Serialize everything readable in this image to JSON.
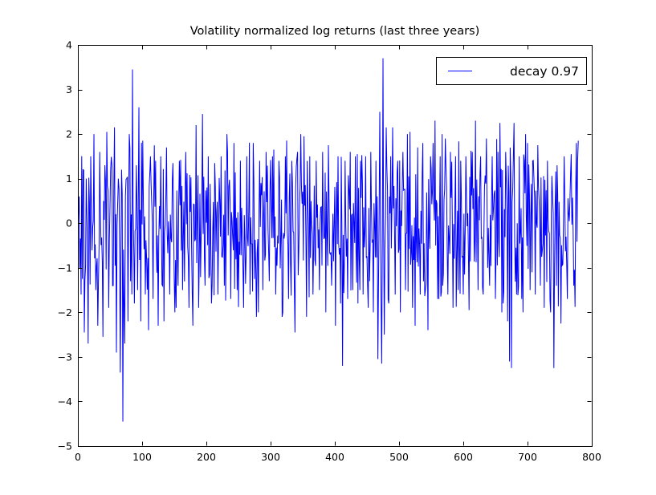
{
  "figure": {
    "background": "#ffffff",
    "axes_color": "#000000",
    "tick_style": "inward, all four spines"
  },
  "chart_data": {
    "type": "line",
    "title": "Volatility normalized log returns (last three years)",
    "xlabel": "",
    "ylabel": "",
    "xlim": [
      0,
      800
    ],
    "ylim": [
      -5,
      4
    ],
    "xticks": [
      0,
      100,
      200,
      300,
      400,
      500,
      600,
      700,
      800
    ],
    "xticklabels": [
      "0",
      "100",
      "200",
      "300",
      "400",
      "500",
      "600",
      "700",
      "800"
    ],
    "yticks": [
      -5,
      -4,
      -3,
      -2,
      -1,
      0,
      1,
      2,
      3,
      4
    ],
    "yticklabels": [
      "−5",
      "−4",
      "−3",
      "−2",
      "−1",
      "0",
      "1",
      "2",
      "3",
      "4"
    ],
    "grid": false,
    "legend": {
      "position": "upper right",
      "entries": [
        {
          "label": "decay 0.97",
          "color": "#0000ff"
        }
      ]
    },
    "series": [
      {
        "name": "decay 0.97",
        "color": "#0000ff",
        "line_width": 1,
        "n_points": 780,
        "summary": "volatility-normalized daily log returns; dense zero-mean noise (sigma ~1), min ~ -4.45 near x=70, max ~ +3.7 near x=475",
        "synthesis": {
          "seed": 20,
          "sigma": 0.8,
          "clamp": 2.0
        },
        "anchors": [
          [
            0,
            -0.3
          ],
          [
            2,
            0.6
          ],
          [
            5,
            -1.6
          ],
          [
            8,
            1.2
          ],
          [
            10,
            -2.45
          ],
          [
            13,
            1.0
          ],
          [
            16,
            -2.7
          ],
          [
            20,
            1.5
          ],
          [
            25,
            2.0
          ],
          [
            28,
            -1.5
          ],
          [
            31,
            -2.3
          ],
          [
            34,
            1.6
          ],
          [
            39,
            -2.55
          ],
          [
            42,
            1.3
          ],
          [
            45,
            2.05
          ],
          [
            48,
            -1.9
          ],
          [
            51,
            1.2
          ],
          [
            54,
            -1.4
          ],
          [
            57,
            2.15
          ],
          [
            60,
            -2.9
          ],
          [
            63,
            1.0
          ],
          [
            66,
            -3.35
          ],
          [
            68,
            1.2
          ],
          [
            70,
            -4.45
          ],
          [
            73,
            -2.7
          ],
          [
            76,
            1.0
          ],
          [
            78,
            -2.2
          ],
          [
            80,
            2.0
          ],
          [
            82,
            -1.3
          ],
          [
            85,
            3.45
          ],
          [
            88,
            -1.8
          ],
          [
            91,
            1.3
          ],
          [
            93,
            -1.5
          ],
          [
            95,
            2.6
          ],
          [
            98,
            -2.2
          ],
          [
            101,
            1.85
          ],
          [
            105,
            -1.6
          ],
          [
            110,
            -2.4
          ],
          [
            113,
            1.5
          ],
          [
            117,
            -1.7
          ],
          [
            121,
            1.4
          ],
          [
            125,
            -2.3
          ],
          [
            129,
            1.5
          ],
          [
            134,
            -2.2
          ],
          [
            138,
            1.7
          ],
          [
            143,
            -1.6
          ],
          [
            148,
            1.35
          ],
          [
            153,
            -1.9
          ],
          [
            158,
            1.4
          ],
          [
            163,
            -1.5
          ],
          [
            168,
            1.6
          ],
          [
            173,
            -1.9
          ],
          [
            179,
            -2.3
          ],
          [
            184,
            2.2
          ],
          [
            188,
            -1.9
          ],
          [
            194,
            2.45
          ],
          [
            198,
            -1.4
          ],
          [
            203,
            1.5
          ],
          [
            208,
            -1.8
          ],
          [
            213,
            1.35
          ],
          [
            218,
            -1.6
          ],
          [
            223,
            1.5
          ],
          [
            228,
            -1.4
          ],
          [
            233,
            1.6
          ],
          [
            238,
            -1.7
          ],
          [
            243,
            1.8
          ],
          [
            248,
            -1.5
          ],
          [
            253,
            1.4
          ],
          [
            258,
            -1.9
          ],
          [
            263,
            1.5
          ],
          [
            268,
            -1.6
          ],
          [
            273,
            1.8
          ],
          [
            278,
            -2.1
          ],
          [
            283,
            1.4
          ],
          [
            288,
            -1.5
          ],
          [
            293,
            1.6
          ],
          [
            298,
            -1.3
          ],
          [
            303,
            1.5
          ],
          [
            308,
            -1.6
          ],
          [
            313,
            1.4
          ],
          [
            318,
            -2.1
          ],
          [
            323,
            1.5
          ],
          [
            328,
            -1.7
          ],
          [
            333,
            1.4
          ],
          [
            338,
            -2.45
          ],
          [
            342,
            1.6
          ],
          [
            347,
            2.0
          ],
          [
            352,
            1.95
          ],
          [
            356,
            -2.1
          ],
          [
            361,
            1.5
          ],
          [
            366,
            -1.6
          ],
          [
            371,
            1.4
          ],
          [
            376,
            -1.5
          ],
          [
            381,
            1.6
          ],
          [
            386,
            -2.0
          ],
          [
            390,
            1.75
          ],
          [
            395,
            -1.4
          ],
          [
            401,
            -2.3
          ],
          [
            405,
            1.5
          ],
          [
            409,
            -1.8
          ],
          [
            412,
            -3.2
          ],
          [
            416,
            1.4
          ],
          [
            420,
            -1.7
          ],
          [
            424,
            1.6
          ],
          [
            428,
            -1.5
          ],
          [
            432,
            1.5
          ],
          [
            436,
            -1.8
          ],
          [
            440,
            1.4
          ],
          [
            444,
            -1.6
          ],
          [
            448,
            1.5
          ],
          [
            452,
            -1.9
          ],
          [
            456,
            1.6
          ],
          [
            460,
            -2.0
          ],
          [
            464,
            1.4
          ],
          [
            467,
            -3.05
          ],
          [
            470,
            2.5
          ],
          [
            473,
            -3.15
          ],
          [
            475,
            3.7
          ],
          [
            477,
            -2.5
          ],
          [
            480,
            2.15
          ],
          [
            484,
            -1.8
          ],
          [
            487,
            1.5
          ],
          [
            490,
            2.15
          ],
          [
            494,
            -1.6
          ],
          [
            498,
            1.4
          ],
          [
            502,
            -2.0
          ],
          [
            506,
            1.6
          ],
          [
            510,
            -1.5
          ],
          [
            513,
            2.0
          ],
          [
            517,
            2.05
          ],
          [
            521,
            -1.9
          ],
          [
            525,
            -2.3
          ],
          [
            529,
            1.7
          ],
          [
            533,
            -1.6
          ],
          [
            537,
            1.8
          ],
          [
            541,
            -1.5
          ],
          [
            545,
            -2.4
          ],
          [
            549,
            1.5
          ],
          [
            553,
            1.8
          ],
          [
            556,
            2.3
          ],
          [
            560,
            -1.7
          ],
          [
            564,
            1.5
          ],
          [
            568,
            -1.4
          ],
          [
            572,
            1.9
          ],
          [
            576,
            -1.6
          ],
          [
            580,
            1.6
          ],
          [
            584,
            -1.9
          ],
          [
            588,
            1.5
          ],
          [
            592,
            -1.5
          ],
          [
            596,
            1.4
          ],
          [
            600,
            -1.6
          ],
          [
            604,
            1.5
          ],
          [
            609,
            -1.95
          ],
          [
            614,
            1.6
          ],
          [
            619,
            2.3
          ],
          [
            623,
            -1.5
          ],
          [
            627,
            1.5
          ],
          [
            631,
            -1.6
          ],
          [
            636,
            1.9
          ],
          [
            641,
            -1.4
          ],
          [
            645,
            1.5
          ],
          [
            650,
            -1.7
          ],
          [
            654,
            1.6
          ],
          [
            657,
            2.25
          ],
          [
            662,
            -1.8
          ],
          [
            666,
            1.6
          ],
          [
            669,
            -2.2
          ],
          [
            672,
            -3.1
          ],
          [
            675,
            -3.25
          ],
          [
            679,
            2.25
          ],
          [
            683,
            -1.6
          ],
          [
            687,
            1.5
          ],
          [
            691,
            -1.7
          ],
          [
            695,
            1.4
          ],
          [
            700,
            1.8
          ],
          [
            704,
            -1.5
          ],
          [
            708,
            1.4
          ],
          [
            712,
            -1.6
          ],
          [
            716,
            1.75
          ],
          [
            720,
            -1.4
          ],
          [
            726,
            -1.9
          ],
          [
            731,
            1.4
          ],
          [
            736,
            -2.0
          ],
          [
            741,
            -3.25
          ],
          [
            746,
            1.3
          ],
          [
            752,
            -2.25
          ],
          [
            757,
            1.5
          ],
          [
            762,
            -1.7
          ],
          [
            768,
            1.55
          ],
          [
            772,
            -1.4
          ],
          [
            776,
            1.8
          ],
          [
            779,
            1.85
          ]
        ]
      }
    ]
  }
}
